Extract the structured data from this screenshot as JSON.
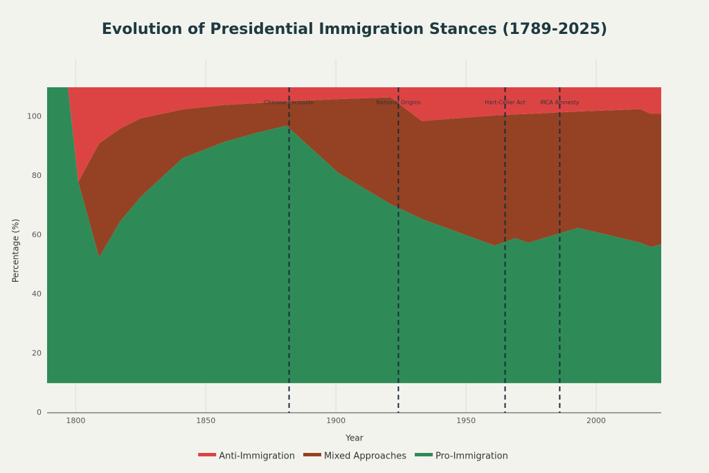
{
  "chart_data": {
    "type": "stacked-area",
    "title": "Evolution of Presidential Immigration Stances (1789-2025)",
    "x_label": "Year",
    "y_label": "Percentage (%)",
    "x": [
      1789,
      1797,
      1801,
      1809,
      1817,
      1825,
      1841,
      1857,
      1869,
      1881,
      1901,
      1921,
      1933,
      1961,
      1969,
      1974,
      1993,
      2017,
      2021,
      2025
    ],
    "baseline": 10,
    "series": [
      {
        "name": "Pro-Immigration",
        "color": "#2e8b57",
        "values": [
          100,
          100,
          68,
          42.5,
          54.6,
          63,
          76,
          81.5,
          84.5,
          87,
          71,
          60.5,
          55.5,
          46.5,
          49,
          47.5,
          52.5,
          47.5,
          46,
          47
        ]
      },
      {
        "name": "Mixed Approaches",
        "color": "#944223",
        "values": [
          0,
          0,
          0,
          38.5,
          31.4,
          26.5,
          16.5,
          12.5,
          10.1,
          8.2,
          25,
          36.1,
          33.1,
          44,
          41.8,
          43.5,
          39.3,
          45.1,
          45,
          44
        ]
      },
      {
        "name": "Anti-Immigration",
        "color": "#dc4444",
        "values": [
          0,
          0,
          32,
          19,
          14,
          10.5,
          7.5,
          6,
          5.4,
          4.8,
          4,
          3.4,
          11.4,
          9.5,
          9.2,
          9,
          8.2,
          7.4,
          9,
          9
        ]
      }
    ],
    "events": [
      {
        "x": 1882,
        "label": "Chinese Exclusion"
      },
      {
        "x": 1924,
        "label": "National Origins"
      },
      {
        "x": 1965,
        "label": "Hart-Celler Act"
      },
      {
        "x": 1986,
        "label": "IRCA Amnesty"
      }
    ],
    "xlim": [
      1789,
      2025
    ],
    "xticks": [
      1800,
      1850,
      1900,
      1950,
      2000
    ],
    "ylim": [
      0,
      110
    ],
    "yticks": [
      0,
      20,
      40,
      60,
      80,
      100
    ],
    "grid": true,
    "legend": "bottom"
  }
}
